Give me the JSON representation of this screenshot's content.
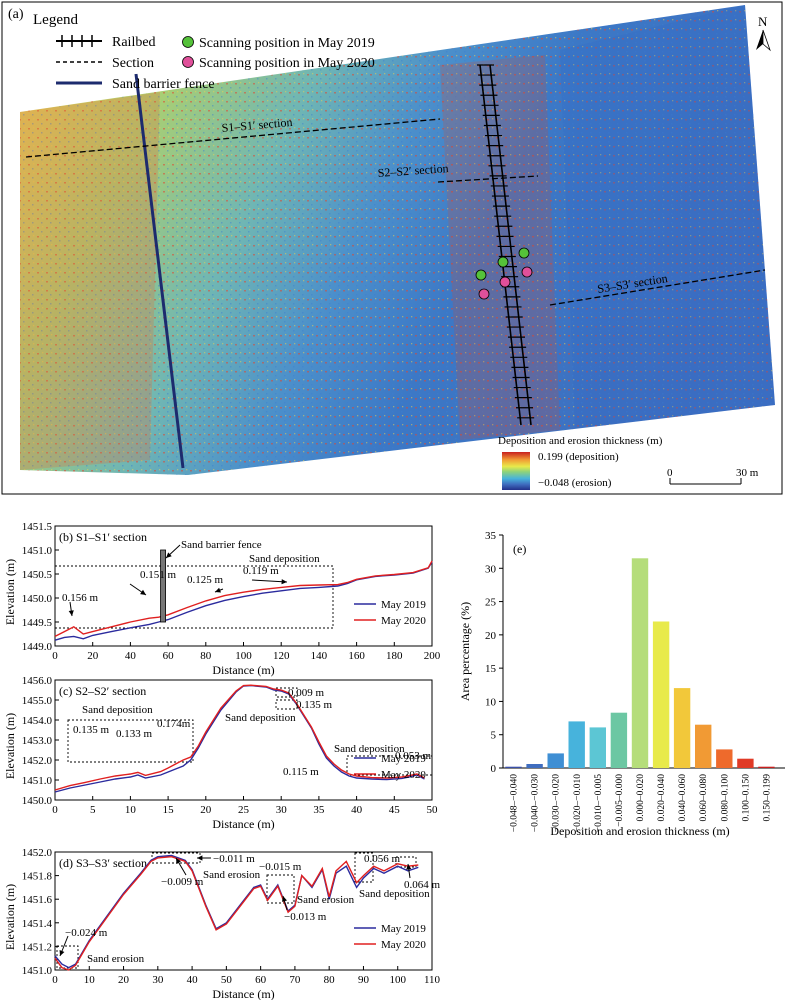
{
  "map": {
    "panel_label": "(a)",
    "legend_title": "Legend",
    "legend": {
      "railbed": "Railbed",
      "section": "Section",
      "fence": "Sand barrier fence",
      "scan2019": "Scanning position in May 2019",
      "scan2020": "Scanning position in May 2020"
    },
    "sections": [
      "S1–S1′ section",
      "S2–S2′ section",
      "S3–S3′ section"
    ],
    "colorbar_title": "Deposition and erosion thickness (m)",
    "colorbar_max": "0.199 (deposition)",
    "colorbar_min": "−0.048 (erosion)",
    "scalebar": [
      "0",
      "30 m"
    ],
    "north": "N",
    "colors": {
      "scan2019": "#55c23a",
      "scan2020": "#e0509a",
      "fence": "#1d2b6e"
    }
  },
  "chart_data": [
    {
      "type": "line",
      "panel_label": "(b)",
      "title": "S1–S1′ section",
      "xlabel": "Distance (m)",
      "ylabel": "Elevation (m)",
      "xlim": [
        0,
        200
      ],
      "ylim": [
        1449.0,
        1451.5
      ],
      "xticks": [
        0,
        20,
        40,
        60,
        80,
        100,
        120,
        140,
        160,
        180,
        200
      ],
      "yticks": [
        1449.0,
        1449.5,
        1450.0,
        1450.5,
        1451.0,
        1451.5
      ],
      "ytick_labels": [
        "1449.0",
        "1449.5",
        "1450.0",
        "1450.5",
        "1451.0",
        "1451.5"
      ],
      "series": [
        {
          "name": "May 2019",
          "color": "#2b2b9e",
          "x": [
            0,
            5,
            10,
            15,
            20,
            30,
            40,
            50,
            55,
            60,
            70,
            80,
            90,
            100,
            110,
            120,
            130,
            140,
            150,
            155,
            160,
            170,
            180,
            190,
            198,
            200
          ],
          "y": [
            1449.12,
            1449.18,
            1449.2,
            1449.15,
            1449.22,
            1449.3,
            1449.38,
            1449.45,
            1449.5,
            1449.55,
            1449.7,
            1449.84,
            1449.95,
            1450.03,
            1450.1,
            1450.15,
            1450.2,
            1450.22,
            1450.25,
            1450.3,
            1450.38,
            1450.45,
            1450.48,
            1450.52,
            1450.62,
            1450.75
          ]
        },
        {
          "name": "May 2020",
          "color": "#e02020",
          "x": [
            0,
            5,
            10,
            15,
            20,
            30,
            40,
            50,
            55,
            60,
            70,
            80,
            90,
            100,
            110,
            120,
            130,
            140,
            150,
            155,
            160,
            170,
            180,
            190,
            198,
            200
          ],
          "y": [
            1449.2,
            1449.3,
            1449.4,
            1449.25,
            1449.3,
            1449.4,
            1449.5,
            1449.58,
            1449.6,
            1449.65,
            1449.8,
            1449.94,
            1450.05,
            1450.12,
            1450.18,
            1450.22,
            1450.26,
            1450.27,
            1450.28,
            1450.32,
            1450.39,
            1450.46,
            1450.49,
            1450.53,
            1450.63,
            1450.77
          ]
        }
      ],
      "annotations": [
        "0.156 m",
        "0.151 m",
        "0.125 m",
        "0.119 m",
        "Sand deposition",
        "Sand barrier fence"
      ]
    },
    {
      "type": "line",
      "panel_label": "(c)",
      "title": "S2–S2′ section",
      "xlabel": "Distance (m)",
      "ylabel": "Elevation (m)",
      "xlim": [
        0,
        50
      ],
      "ylim": [
        1450.0,
        1456.0
      ],
      "xticks": [
        0,
        5,
        10,
        15,
        20,
        25,
        30,
        35,
        40,
        45,
        50
      ],
      "yticks": [
        1450,
        1451,
        1452,
        1453,
        1454,
        1455,
        1456
      ],
      "ytick_labels": [
        "1450.0",
        "1451.0",
        "1452.0",
        "1453.0",
        "1454.0",
        "1455.0",
        "1456.0"
      ],
      "series": [
        {
          "name": "May 2019",
          "color": "#2b2b9e",
          "x": [
            0,
            2,
            4,
            6,
            8,
            10,
            11,
            12,
            14,
            15,
            16,
            17,
            18,
            19,
            20,
            22,
            24,
            25,
            26,
            28,
            29,
            30,
            31,
            32,
            34,
            35,
            36,
            37,
            38,
            39,
            40,
            42,
            44,
            46,
            47,
            48,
            49
          ],
          "y": [
            1450.4,
            1450.6,
            1450.75,
            1450.9,
            1451.05,
            1451.15,
            1451.25,
            1451.1,
            1451.25,
            1451.4,
            1451.55,
            1451.7,
            1452.0,
            1452.6,
            1453.3,
            1454.5,
            1455.4,
            1455.7,
            1455.72,
            1455.65,
            1455.5,
            1455.45,
            1455.3,
            1454.8,
            1453.6,
            1452.8,
            1452.1,
            1451.7,
            1451.4,
            1451.2,
            1451.1,
            1451.05,
            1451.02,
            1451.08,
            1451.15,
            1451.25,
            1451.05
          ]
        },
        {
          "name": "May 2020",
          "color": "#e02020",
          "x": [
            0,
            2,
            4,
            6,
            8,
            10,
            11,
            12,
            14,
            15,
            16,
            17,
            18,
            19,
            20,
            22,
            24,
            25,
            26,
            28,
            29,
            30,
            31,
            32,
            34,
            35,
            36,
            37,
            38,
            39,
            40,
            42,
            44,
            46,
            47,
            48,
            49
          ],
          "y": [
            1450.5,
            1450.72,
            1450.88,
            1451.05,
            1451.2,
            1451.3,
            1451.38,
            1451.23,
            1451.42,
            1451.6,
            1451.8,
            1452.0,
            1452.15,
            1452.7,
            1453.4,
            1454.6,
            1455.45,
            1455.72,
            1455.74,
            1455.68,
            1455.55,
            1455.5,
            1455.35,
            1454.85,
            1453.65,
            1452.9,
            1452.2,
            1451.8,
            1451.5,
            1451.3,
            1451.2,
            1451.12,
            1451.1,
            1451.15,
            1451.22,
            1451.3,
            1451.1
          ]
        }
      ],
      "annotations": [
        "0.135 m",
        "0.133 m",
        "0.174m",
        "0.009 m",
        "0.135 m",
        "0.115 m",
        "0.053 m",
        "Sand deposition",
        "Sand deposition",
        "Sand deposition"
      ]
    },
    {
      "type": "line",
      "panel_label": "(d)",
      "title": "S3–S3′ section",
      "xlabel": "Distance (m)",
      "ylabel": "Elevation (m)",
      "xlim": [
        0,
        110
      ],
      "ylim": [
        1451.0,
        1452.0
      ],
      "xticks": [
        0,
        10,
        20,
        30,
        40,
        50,
        60,
        70,
        80,
        90,
        100,
        110
      ],
      "yticks": [
        1451.0,
        1451.2,
        1451.4,
        1451.6,
        1451.8,
        1452.0
      ],
      "ytick_labels": [
        "1451.0",
        "1451.2",
        "1451.4",
        "1451.6",
        "1451.8",
        "1452.0"
      ],
      "series": [
        {
          "name": "May 2019",
          "color": "#2b2b9e",
          "x": [
            0,
            2,
            4,
            6,
            8,
            10,
            15,
            20,
            25,
            28,
            30,
            34,
            38,
            40,
            44,
            47,
            50,
            54,
            58,
            60,
            62,
            65,
            68,
            70,
            72,
            75,
            78,
            80,
            82,
            85,
            88,
            90,
            93,
            96,
            100,
            103,
            106
          ],
          "y": [
            1451.12,
            1451.05,
            1451.02,
            1451.05,
            1451.15,
            1451.25,
            1451.45,
            1451.65,
            1451.82,
            1451.93,
            1451.96,
            1451.97,
            1451.93,
            1451.85,
            1451.55,
            1451.35,
            1451.4,
            1451.55,
            1451.7,
            1451.72,
            1451.6,
            1451.72,
            1451.5,
            1451.55,
            1451.8,
            1451.7,
            1451.85,
            1451.6,
            1451.82,
            1451.88,
            1451.7,
            1451.78,
            1451.86,
            1451.82,
            1451.88,
            1451.84,
            1451.87
          ]
        },
        {
          "name": "May 2020",
          "color": "#e02020",
          "x": [
            0,
            2,
            4,
            6,
            8,
            10,
            15,
            20,
            25,
            28,
            30,
            34,
            38,
            40,
            44,
            47,
            50,
            54,
            58,
            60,
            62,
            65,
            68,
            70,
            72,
            75,
            78,
            80,
            82,
            85,
            88,
            90,
            93,
            96,
            100,
            103,
            106
          ],
          "y": [
            1451.1,
            1451.02,
            1451.0,
            1451.04,
            1451.14,
            1451.24,
            1451.44,
            1451.64,
            1451.81,
            1451.92,
            1451.95,
            1451.96,
            1451.92,
            1451.84,
            1451.54,
            1451.34,
            1451.39,
            1451.54,
            1451.69,
            1451.71,
            1451.59,
            1451.71,
            1451.49,
            1451.54,
            1451.8,
            1451.71,
            1451.86,
            1451.62,
            1451.84,
            1451.92,
            1451.74,
            1451.8,
            1451.88,
            1451.84,
            1451.9,
            1451.88,
            1451.89
          ]
        }
      ],
      "annotations": [
        "−0.011 m",
        "−0.009 m",
        "Sand erosion",
        "−0.015 m",
        "−0.013 m",
        "Sand erosion",
        "0.056 m",
        "0.064 m",
        "Sand deposition",
        "−0.024 m",
        "Sand erosion"
      ]
    },
    {
      "type": "bar",
      "panel_label": "(e)",
      "xlabel": "Deposition and erosion thickness (m)",
      "ylabel": "Area percentage (%)",
      "ylim": [
        0,
        35
      ],
      "yticks": [
        0,
        5,
        10,
        15,
        20,
        25,
        30,
        35
      ],
      "categories": [
        "−0.048–−0.040",
        "−0.040–−0.030",
        "−0.030–−0.020",
        "−0.020–−0.010",
        "−0.010–−0.005",
        "−0.005–0.000",
        "0.000–0.020",
        "0.020–0.040",
        "0.040–0.060",
        "0.060–0.080",
        "0.080–0.100",
        "0.100–0.150",
        "0.150–0.199"
      ],
      "values": [
        0.2,
        0.6,
        2.2,
        7.0,
        6.1,
        8.3,
        31.5,
        22.0,
        12.0,
        6.5,
        2.8,
        1.4,
        0.2
      ],
      "colors": [
        "#3a4fa8",
        "#3f6dbf",
        "#3f8fd4",
        "#47b3dc",
        "#5cc6d4",
        "#6cc7a3",
        "#b5dd7a",
        "#e8ea4a",
        "#f2c83a",
        "#f19a34",
        "#ee6a2c",
        "#e03a26",
        "#c8201f"
      ]
    }
  ]
}
